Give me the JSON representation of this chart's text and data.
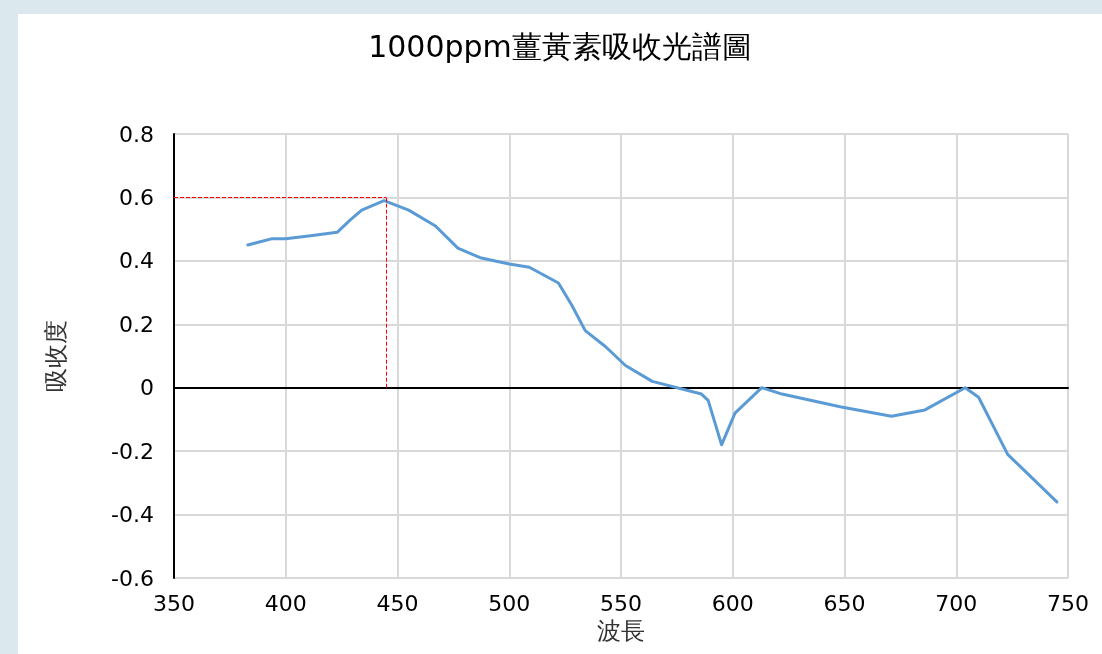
{
  "chart_data": {
    "type": "line",
    "title": "1000ppm薑黃素吸收光譜圖",
    "xlabel": "波長",
    "ylabel": "吸收度",
    "series": [
      {
        "color": "#5b9bd5",
        "x": [
          383,
          394,
          400,
          412,
          423,
          429,
          434,
          444,
          455,
          467,
          477,
          487,
          500,
          509,
          522,
          528,
          534,
          543,
          552,
          564,
          586,
          589,
          595,
          601,
          613,
          622,
          648,
          671,
          686,
          704,
          710,
          723,
          745
        ],
        "values": [
          0.45,
          0.47,
          0.47,
          0.48,
          0.49,
          0.53,
          0.56,
          0.59,
          0.56,
          0.51,
          0.44,
          0.41,
          0.39,
          0.38,
          0.33,
          0.26,
          0.18,
          0.13,
          0.07,
          0.02,
          -0.02,
          -0.04,
          -0.18,
          -0.08,
          0,
          -0.02,
          -0.06,
          -0.09,
          -0.07,
          0,
          -0.03,
          -0.21,
          -0.36
        ]
      }
    ],
    "xlim": [
      350,
      750
    ],
    "xticks": [
      350,
      400,
      450,
      500,
      550,
      600,
      650,
      700,
      750
    ],
    "ylim": [
      -0.6,
      0.8
    ],
    "yticks": [
      -0.6,
      -0.4,
      -0.2,
      0,
      0.2,
      0.4,
      0.6,
      0.8
    ],
    "ref_lines": [
      {
        "axis": "x",
        "value": 445,
        "color": "#ff0000",
        "line_style": "dashed"
      },
      {
        "axis": "y",
        "value": 0.6,
        "color": "#ff0000",
        "line_style": "dashed"
      }
    ],
    "grid": true,
    "marker": "none",
    "line_style": "solid"
  }
}
